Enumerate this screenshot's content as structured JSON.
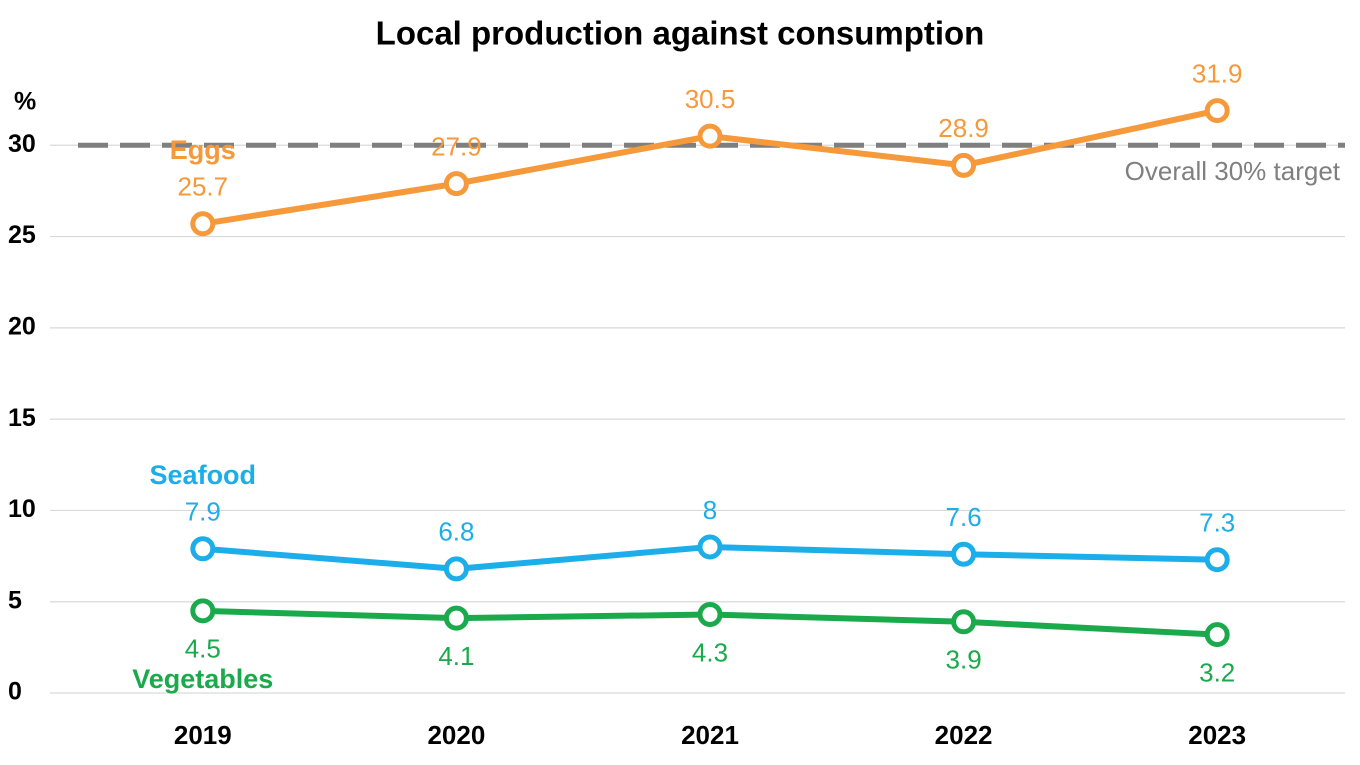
{
  "chart_data": {
    "type": "line",
    "title": "Local production against consumption",
    "y_label": "%",
    "categories": [
      "2019",
      "2020",
      "2021",
      "2022",
      "2023"
    ],
    "series": [
      {
        "name": "Eggs",
        "color": "#f5993a",
        "label_position": "above",
        "values": [
          25.7,
          27.9,
          30.5,
          28.9,
          31.9
        ]
      },
      {
        "name": "Seafood",
        "color": "#1caee8",
        "label_position": "above",
        "values": [
          7.9,
          6.8,
          8,
          7.6,
          7.3
        ]
      },
      {
        "name": "Vegetables",
        "color": "#1aaa4c",
        "label_position": "below",
        "values": [
          4.5,
          4.1,
          4.3,
          3.9,
          3.2
        ]
      }
    ],
    "reference_line": {
      "value": 30,
      "label": "Overall 30% target",
      "color": "#7f7f7f"
    },
    "ylim": [
      0,
      35
    ],
    "yticks": [
      0,
      5,
      10,
      15,
      20,
      25,
      30
    ],
    "grid": true
  }
}
